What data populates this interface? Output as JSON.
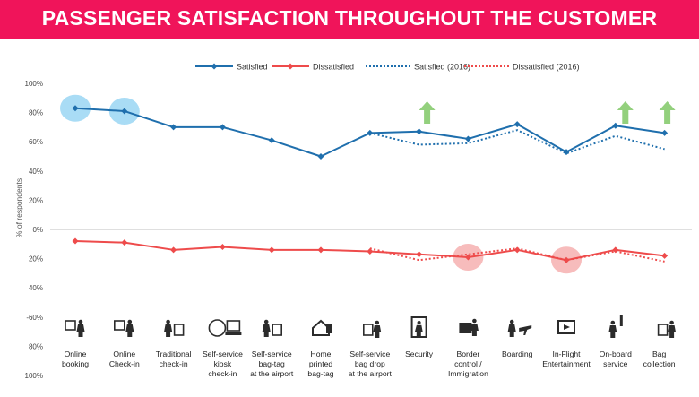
{
  "page": {
    "title": "PASSENGER SATISFACTION THROUGHOUT THE CUSTOMER JOURNEY"
  },
  "colors": {
    "banner": "#f0145a",
    "satisfied": "#1f6fad",
    "dissatisfied": "#ee4b4b",
    "highlight_blue": "#a9dcf5",
    "highlight_red": "#f7bcbc",
    "arrow_green": "#93d07d",
    "icon": "#2b2b2b",
    "zero_line": "#bfbfbf"
  },
  "chart_data": {
    "type": "line",
    "ylabel": "% of respondents",
    "ytick_labels": [
      "100%",
      "80%",
      "60%",
      "40%",
      "20%",
      "0%",
      "20%",
      "40%",
      "-60%",
      "80%",
      "100%"
    ],
    "ytick_values": [
      100,
      80,
      60,
      40,
      20,
      0,
      -20,
      -40,
      -60,
      -80,
      -100
    ],
    "ylim": [
      -100,
      100
    ],
    "legend_position": "top-center",
    "categories": [
      "Online booking",
      "Online Check-in",
      "Traditional check-in",
      "Self-service kiosk check-in",
      "Self-service bag-tag at the airport",
      "Home printed bag-tag",
      "Self-service bag drop at the airport",
      "Security",
      "Border control / Immigration",
      "Boarding",
      "In-Flight Entertainment",
      "On-board service",
      "Bag collection"
    ],
    "category_label_lines": [
      [
        "Online",
        "booking"
      ],
      [
        "Online",
        "Check-in"
      ],
      [
        "Traditional",
        "check-in"
      ],
      [
        "Self-service",
        "kiosk",
        "check-in"
      ],
      [
        "Self-service",
        "bag-tag",
        "at the airport"
      ],
      [
        "Home",
        "printed",
        "bag-tag"
      ],
      [
        "Self-service",
        "bag drop",
        "at the airport"
      ],
      [
        "Security"
      ],
      [
        "Border",
        "control /",
        "Immigration"
      ],
      [
        "Boarding"
      ],
      [
        "In-Flight",
        "Entertainment"
      ],
      [
        "On-board",
        "service"
      ],
      [
        "Bag",
        "collection"
      ]
    ],
    "category_icons": [
      "online-booking-icon",
      "online-checkin-icon",
      "traditional-checkin-icon",
      "kiosk-icon",
      "bag-tag-icon",
      "home-print-icon",
      "bag-drop-icon",
      "security-gate-icon",
      "border-control-icon",
      "boarding-icon",
      "inflight-entertainment-icon",
      "onboard-service-icon",
      "bag-collection-icon"
    ],
    "series": [
      {
        "name": "Satisfied",
        "style": "solid",
        "color": "#1f6fad",
        "values": [
          83,
          81,
          70,
          70,
          61,
          50,
          66,
          67,
          62,
          72,
          53,
          71,
          66
        ]
      },
      {
        "name": "Dissatisfied",
        "style": "solid",
        "color": "#ee4b4b",
        "values": [
          -8,
          -9,
          -14,
          -12,
          -14,
          -14,
          -15,
          -17,
          -19,
          -14,
          -21,
          -14,
          -18
        ]
      },
      {
        "name": "Satisfied (2016)",
        "style": "dotted",
        "color": "#1f6fad",
        "values": [
          null,
          null,
          null,
          null,
          null,
          null,
          66,
          58,
          59,
          68,
          52,
          64,
          55
        ]
      },
      {
        "name": "Dissatisfied (2016)",
        "style": "dotted",
        "color": "#ee4b4b",
        "values": [
          null,
          null,
          null,
          null,
          null,
          null,
          -13,
          -21,
          -17,
          -13,
          -21,
          -15,
          -22
        ]
      }
    ],
    "highlights": [
      {
        "category_index": 0,
        "series": "Satisfied",
        "color": "#a9dcf5"
      },
      {
        "category_index": 1,
        "series": "Satisfied",
        "color": "#a9dcf5"
      },
      {
        "category_index": 8,
        "series": "Dissatisfied",
        "color": "#f7bcbc"
      },
      {
        "category_index": 10,
        "series": "Dissatisfied",
        "color": "#f7bcbc"
      }
    ],
    "up_arrows_category_indices": [
      7,
      11,
      12
    ]
  }
}
